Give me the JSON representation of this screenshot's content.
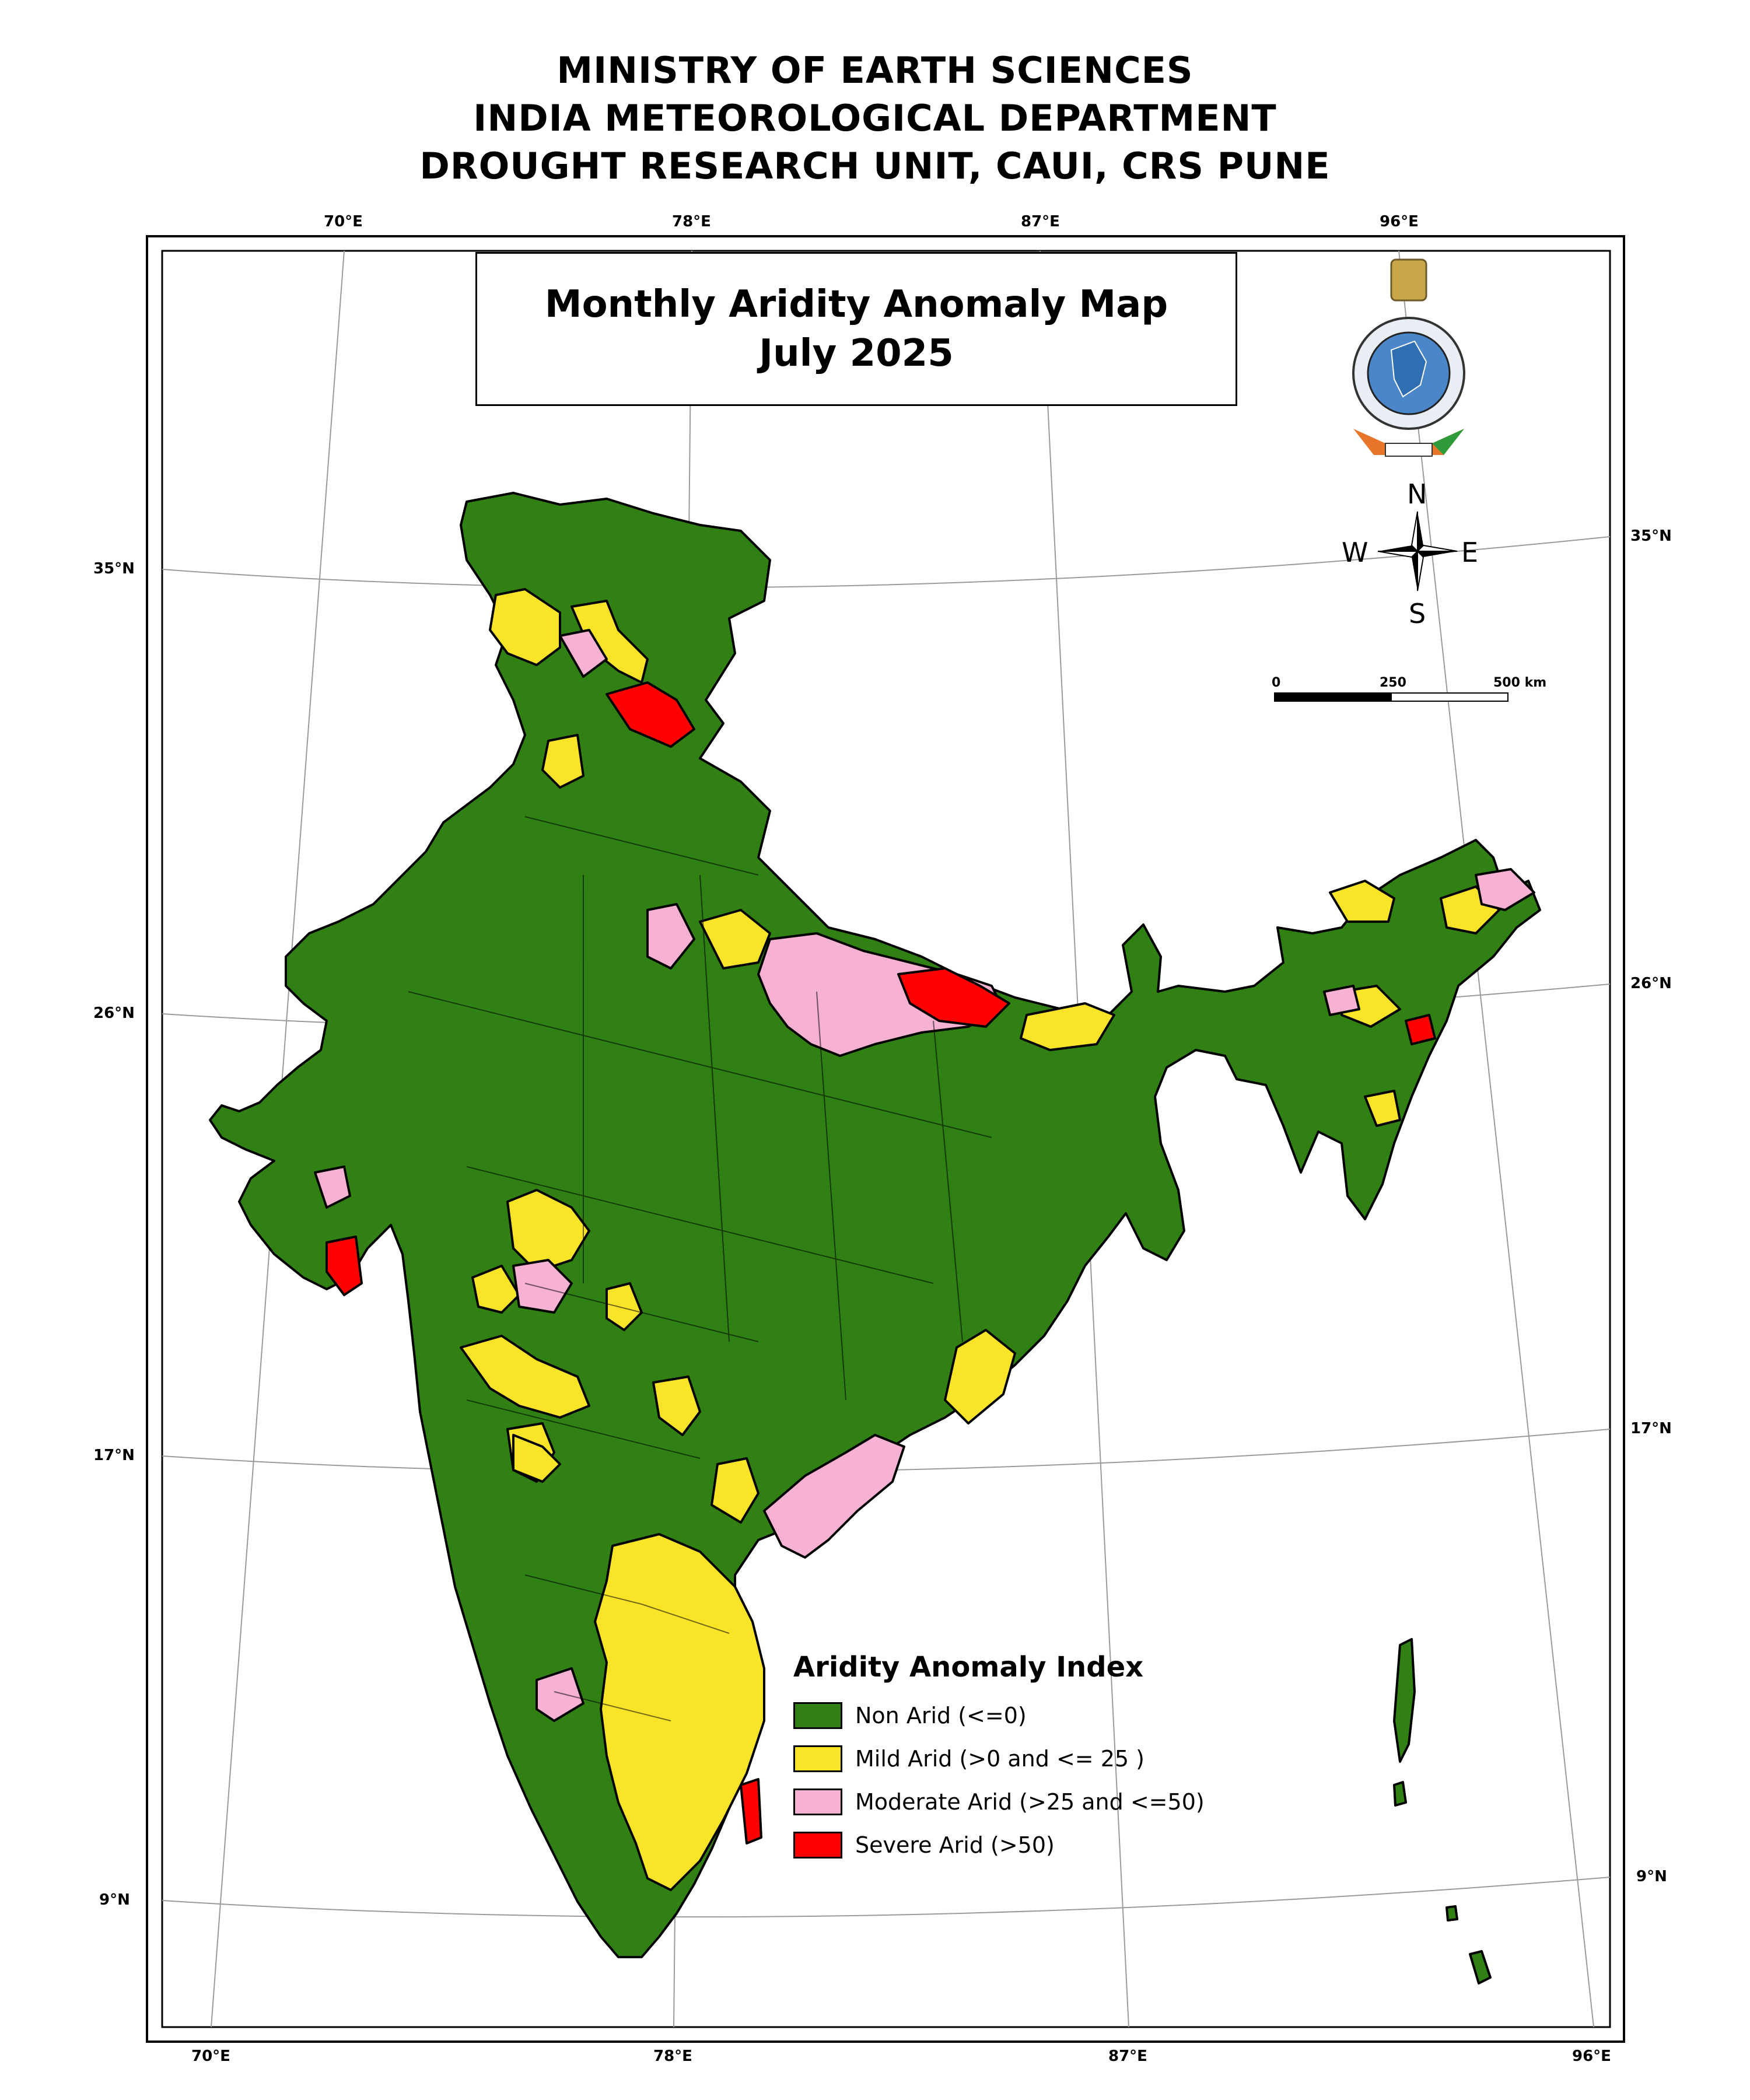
{
  "header": {
    "line1": "MINISTRY OF EARTH SCIENCES",
    "line2": "INDIA METEOROLOGICAL DEPARTMENT",
    "line3": "DROUGHT RESEARCH UNIT, CAUI, CRS PUNE"
  },
  "map_title": {
    "line1": "Monthly Aridity Anomaly Map",
    "line2": "July 2025"
  },
  "graticule": {
    "top_longitudes": [
      "70°E",
      "78°E",
      "87°E",
      "96°E"
    ],
    "bottom_longitudes": [
      "70°E",
      "78°E",
      "87°E",
      "96°E"
    ],
    "left_latitudes": [
      "35°N",
      "26°N",
      "17°N",
      "9°N"
    ],
    "right_latitudes": [
      "35°N",
      "26°N",
      "17°N",
      "9°N"
    ]
  },
  "compass": {
    "north": "N",
    "south": "S",
    "east": "E",
    "west": "W"
  },
  "scale_bar": {
    "label_0": "0",
    "label_mid": "250",
    "label_end": "500 km"
  },
  "logo": {
    "name": "imd-emblem"
  },
  "legend": {
    "title": "Aridity Anomaly Index",
    "items": [
      {
        "label": "Non Arid (<=0)",
        "color": "#318014"
      },
      {
        "label": "Mild Arid (>0 and <= 25 )",
        "color": "#F9E427"
      },
      {
        "label": "Moderate Arid (>25 and <=50)",
        "color": "#F7B1D2"
      },
      {
        "label": "Severe Arid (>50)",
        "color": "#FF0000"
      }
    ]
  }
}
